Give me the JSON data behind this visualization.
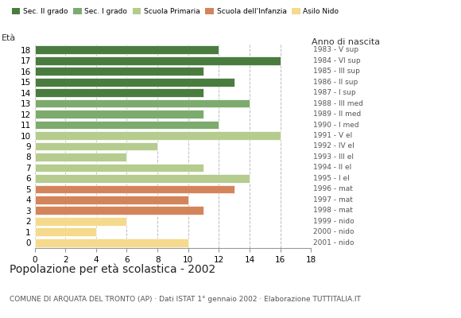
{
  "ages": [
    18,
    17,
    16,
    15,
    14,
    13,
    12,
    11,
    10,
    9,
    8,
    7,
    6,
    5,
    4,
    3,
    2,
    1,
    0
  ],
  "values": [
    12,
    16,
    11,
    13,
    11,
    14,
    11,
    12,
    16,
    8,
    6,
    11,
    14,
    13,
    10,
    11,
    6,
    4,
    10
  ],
  "colors": [
    "#4a7c3f",
    "#4a7c3f",
    "#4a7c3f",
    "#4a7c3f",
    "#4a7c3f",
    "#7dab6e",
    "#7dab6e",
    "#7dab6e",
    "#b5cc8e",
    "#b5cc8e",
    "#b5cc8e",
    "#b5cc8e",
    "#b5cc8e",
    "#d4845a",
    "#d4845a",
    "#d4845a",
    "#f5d98c",
    "#f5d98c",
    "#f5d98c"
  ],
  "right_labels": [
    "1983 - V sup",
    "1984 - VI sup",
    "1985 - III sup",
    "1986 - II sup",
    "1987 - I sup",
    "1988 - III med",
    "1989 - II med",
    "1990 - I med",
    "1991 - V el",
    "1992 - IV el",
    "1993 - III el",
    "1994 - II el",
    "1995 - I el",
    "1996 - mat",
    "1997 - mat",
    "1998 - mat",
    "1999 - nido",
    "2000 - nido",
    "2001 - nido"
  ],
  "legend_labels": [
    "Sec. II grado",
    "Sec. I grado",
    "Scuola Primaria",
    "Scuola dell'Infanzia",
    "Asilo Nido"
  ],
  "legend_colors": [
    "#4a7c3f",
    "#7dab6e",
    "#b5cc8e",
    "#d4845a",
    "#f5d98c"
  ],
  "title": "Popolazione per età scolastica - 2002",
  "subtitle": "COMUNE DI ARQUATA DEL TRONTO (AP) · Dati ISTAT 1° gennaio 2002 · Elaborazione TUTTITALIA.IT",
  "label_eta": "Età",
  "label_anno": "Anno di nascita",
  "xlim": [
    0,
    18
  ],
  "xticks": [
    0,
    2,
    4,
    6,
    8,
    10,
    12,
    14,
    16,
    18
  ],
  "background_color": "#ffffff",
  "grid_color": "#bbbbbb"
}
